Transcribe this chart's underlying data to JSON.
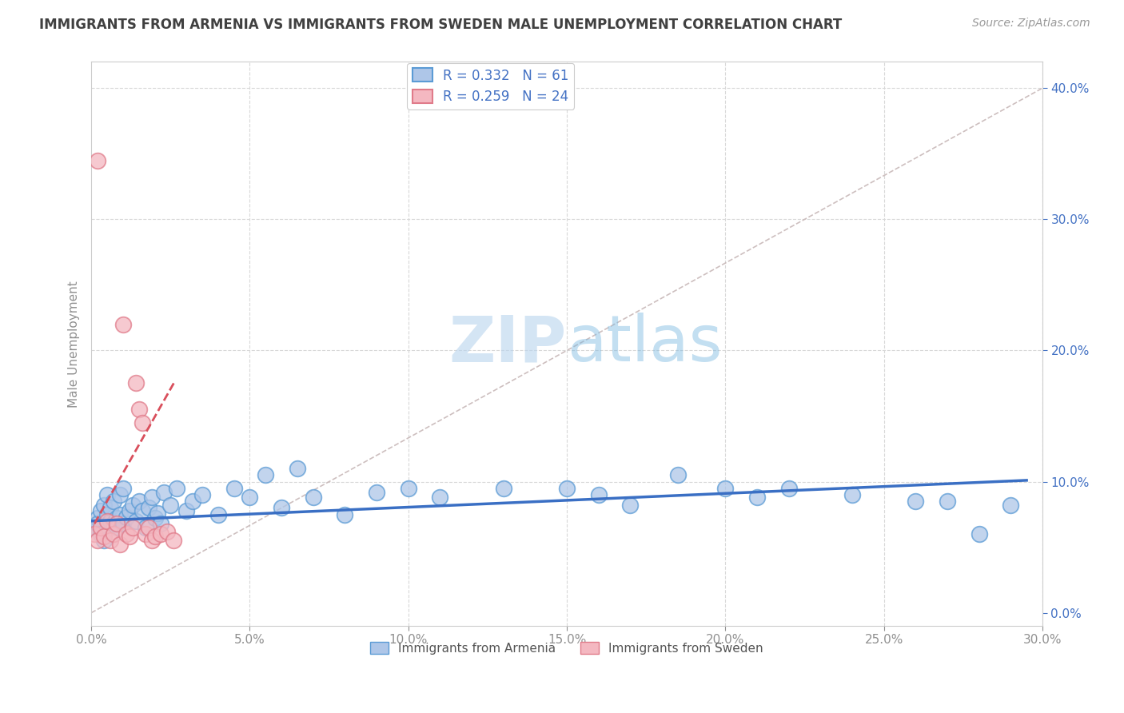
{
  "title": "IMMIGRANTS FROM ARMENIA VS IMMIGRANTS FROM SWEDEN MALE UNEMPLOYMENT CORRELATION CHART",
  "source": "Source: ZipAtlas.com",
  "ylabel": "Male Unemployment",
  "legend_label1": "Immigrants from Armenia",
  "legend_label2": "Immigrants from Sweden",
  "R1": 0.332,
  "N1": 61,
  "R2": 0.259,
  "N2": 24,
  "xlim": [
    0.0,
    0.3
  ],
  "ylim": [
    -0.01,
    0.42
  ],
  "xticks": [
    0.0,
    0.05,
    0.1,
    0.15,
    0.2,
    0.25,
    0.3
  ],
  "yticks": [
    0.0,
    0.1,
    0.2,
    0.3,
    0.4
  ],
  "color_armenia": "#aec6e8",
  "color_armenia_edge": "#5b9bd5",
  "color_sweden": "#f4b8c1",
  "color_sweden_edge": "#e07b8a",
  "color_trend_armenia": "#3a6fc4",
  "color_trend_sweden": "#d94f5c",
  "color_ref_line": "#c8b8b8",
  "color_grid": "#d8d8d8",
  "color_title": "#404040",
  "color_source": "#999999",
  "color_legend_text": "#4472c4",
  "color_axis_label": "#909090",
  "color_tick_label_y": "#4472c4",
  "color_tick_label_x": "#909090",
  "watermark_color": "#daeaf7",
  "background_color": "#ffffff",
  "armenia_x": [
    0.001,
    0.002,
    0.002,
    0.003,
    0.003,
    0.004,
    0.004,
    0.005,
    0.005,
    0.006,
    0.006,
    0.007,
    0.007,
    0.008,
    0.008,
    0.009,
    0.009,
    0.01,
    0.01,
    0.011,
    0.012,
    0.013,
    0.014,
    0.015,
    0.016,
    0.017,
    0.018,
    0.019,
    0.02,
    0.021,
    0.022,
    0.023,
    0.025,
    0.027,
    0.03,
    0.032,
    0.035,
    0.04,
    0.045,
    0.05,
    0.055,
    0.06,
    0.065,
    0.07,
    0.08,
    0.09,
    0.1,
    0.11,
    0.13,
    0.15,
    0.16,
    0.17,
    0.185,
    0.2,
    0.21,
    0.22,
    0.24,
    0.26,
    0.27,
    0.28,
    0.29
  ],
  "armenia_y": [
    0.065,
    0.072,
    0.068,
    0.078,
    0.06,
    0.082,
    0.055,
    0.075,
    0.09,
    0.07,
    0.08,
    0.068,
    0.085,
    0.072,
    0.065,
    0.09,
    0.075,
    0.068,
    0.095,
    0.073,
    0.078,
    0.082,
    0.07,
    0.085,
    0.078,
    0.065,
    0.08,
    0.088,
    0.072,
    0.076,
    0.068,
    0.092,
    0.082,
    0.095,
    0.078,
    0.085,
    0.09,
    0.075,
    0.095,
    0.088,
    0.105,
    0.08,
    0.11,
    0.088,
    0.075,
    0.092,
    0.095,
    0.088,
    0.095,
    0.095,
    0.09,
    0.082,
    0.105,
    0.095,
    0.088,
    0.095,
    0.09,
    0.085,
    0.085,
    0.06,
    0.082
  ],
  "sweden_x": [
    0.001,
    0.002,
    0.002,
    0.003,
    0.004,
    0.005,
    0.006,
    0.007,
    0.008,
    0.009,
    0.01,
    0.011,
    0.012,
    0.013,
    0.014,
    0.015,
    0.016,
    0.017,
    0.018,
    0.019,
    0.02,
    0.022,
    0.024,
    0.026
  ],
  "sweden_y": [
    0.06,
    0.345,
    0.055,
    0.065,
    0.058,
    0.07,
    0.055,
    0.06,
    0.068,
    0.052,
    0.22,
    0.06,
    0.058,
    0.065,
    0.175,
    0.155,
    0.145,
    0.06,
    0.065,
    0.055,
    0.058,
    0.06,
    0.062,
    0.055
  ],
  "trend_armenia_x0": 0.0,
  "trend_armenia_x1": 0.295,
  "trend_armenia_y0": 0.07,
  "trend_armenia_y1": 0.101,
  "trend_sweden_x0": 0.001,
  "trend_sweden_x1": 0.026,
  "trend_sweden_y0": 0.068,
  "trend_sweden_y1": 0.175,
  "ref_line_x0": 0.0,
  "ref_line_x1": 0.3,
  "ref_line_y0": 0.0,
  "ref_line_y1": 0.4
}
